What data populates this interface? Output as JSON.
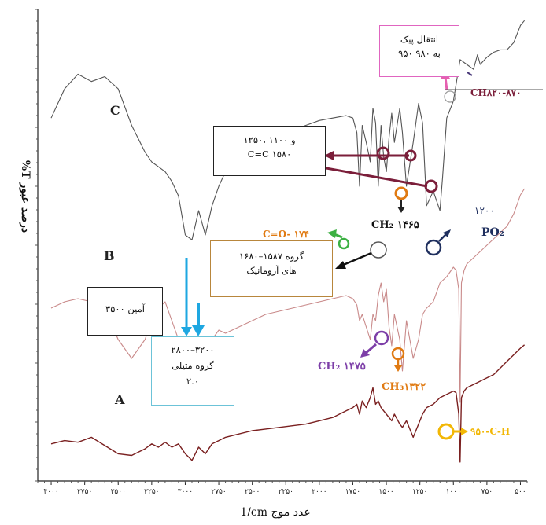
{
  "chart_data": {
    "type": "line",
    "title": "",
    "xlabel": "1/cm عدد موج",
    "ylabel": "%T درصد عبور",
    "x_tick_labels": [
      "۴۰۰۰",
      "۳۷۵۰",
      "۳۵۰۰",
      "۳۲۵۰",
      "۳۰۰۰",
      "۲۷۵۰",
      "۲۵۰۰",
      "۲۲۵۰",
      "۲۰۰۰",
      "۱۷۵۰",
      "۱۵۰۰",
      "۱۲۵۰",
      "۱۰۰۰",
      "۷۵۰",
      "۵۰۰"
    ],
    "xlim": [
      4100,
      450
    ],
    "x_direction": "descending",
    "grid": false,
    "series": [
      {
        "name": "C",
        "color": "#555555",
        "x": [
          4000,
          3900,
          3800,
          3700,
          3600,
          3500,
          3400,
          3300,
          3250,
          3200,
          3150,
          3100,
          3050,
          3000,
          2950,
          2900,
          2850,
          2800,
          2750,
          2700,
          2600,
          2500,
          2400,
          2300,
          2200,
          2100,
          2000,
          1900,
          1800,
          1750,
          1720,
          1700,
          1680,
          1650,
          1620,
          1600,
          1580,
          1560,
          1540,
          1520,
          1500,
          1480,
          1460,
          1440,
          1400,
          1380,
          1350,
          1300,
          1260,
          1230,
          1200,
          1150,
          1100,
          1080,
          1050,
          1000,
          950,
          900,
          850,
          820,
          800,
          750,
          700,
          650,
          600,
          550,
          500,
          470
        ],
        "y": [
          58,
          70,
          76,
          73,
          75,
          70,
          55,
          44,
          40,
          38,
          36,
          32,
          26,
          10,
          8,
          20,
          10,
          22,
          30,
          36,
          42,
          46,
          49,
          51,
          53,
          55,
          57,
          58,
          59,
          58,
          52,
          30,
          55,
          48,
          40,
          62,
          56,
          30,
          55,
          42,
          36,
          50,
          60,
          48,
          62,
          52,
          30,
          48,
          64,
          56,
          22,
          28,
          20,
          34,
          58,
          65,
          82,
          80,
          78,
          84,
          80,
          83,
          85,
          86,
          86,
          89,
          96,
          98
        ]
      },
      {
        "name": "B",
        "color": "#c98a8a",
        "x": [
          4000,
          3900,
          3800,
          3700,
          3600,
          3500,
          3400,
          3300,
          3250,
          3200,
          3150,
          3100,
          3050,
          3000,
          2950,
          2900,
          2850,
          2800,
          2750,
          2700,
          2600,
          2500,
          2400,
          2300,
          2200,
          2100,
          2000,
          1900,
          1800,
          1750,
          1720,
          1700,
          1680,
          1650,
          1620,
          1600,
          1580,
          1560,
          1540,
          1520,
          1500,
          1480,
          1460,
          1440,
          1400,
          1380,
          1350,
          1300,
          1260,
          1230,
          1200,
          1150,
          1100,
          1050,
          1000,
          980,
          960,
          950,
          940,
          920,
          900,
          850,
          800,
          750,
          700,
          650,
          600,
          550,
          500,
          470
        ],
        "y": [
          32,
          34,
          35,
          34,
          32,
          22,
          16,
          22,
          28,
          32,
          34,
          28,
          22,
          8,
          4,
          20,
          6,
          22,
          25,
          24,
          26,
          28,
          30,
          31,
          32,
          33,
          34,
          35,
          36,
          35,
          33,
          28,
          30,
          26,
          22,
          30,
          28,
          36,
          40,
          34,
          38,
          26,
          20,
          30,
          22,
          12,
          28,
          16,
          22,
          30,
          32,
          34,
          40,
          42,
          45,
          44,
          38,
          2,
          40,
          44,
          46,
          48,
          50,
          52,
          54,
          56,
          58,
          62,
          68,
          70
        ]
      },
      {
        "name": "A",
        "color": "#7a2020",
        "x": [
          4000,
          3900,
          3800,
          3700,
          3600,
          3500,
          3400,
          3300,
          3250,
          3200,
          3150,
          3100,
          3050,
          3000,
          2950,
          2900,
          2850,
          2800,
          2750,
          2700,
          2600,
          2500,
          2400,
          2300,
          2200,
          2100,
          2000,
          1900,
          1800,
          1750,
          1720,
          1700,
          1680,
          1650,
          1620,
          1600,
          1580,
          1560,
          1540,
          1520,
          1500,
          1480,
          1460,
          1440,
          1400,
          1380,
          1350,
          1300,
          1260,
          1230,
          1200,
          1150,
          1100,
          1050,
          1000,
          980,
          960,
          950,
          940,
          920,
          900,
          850,
          800,
          750,
          700,
          650,
          600,
          550,
          500,
          470
        ],
        "y": [
          12,
          14,
          13,
          16,
          11,
          6,
          5,
          9,
          12,
          10,
          13,
          10,
          12,
          6,
          2,
          10,
          6,
          12,
          14,
          16,
          18,
          20,
          21,
          22,
          23,
          24,
          26,
          28,
          32,
          34,
          36,
          30,
          38,
          34,
          40,
          46,
          36,
          38,
          34,
          32,
          30,
          28,
          26,
          30,
          24,
          22,
          26,
          16,
          24,
          30,
          34,
          36,
          40,
          42,
          44,
          43,
          30,
          1,
          40,
          44,
          46,
          48,
          50,
          52,
          54,
          58,
          62,
          66,
          70,
          72
        ]
      }
    ],
    "curve_labels": [
      "C",
      "B",
      "A"
    ],
    "annotations": {
      "peak_shift": {
        "line1": "انتقال پیک",
        "line2": "۹۵۰ به ۹۸۰"
      },
      "ch_bend": "CH۸۲۰-۸۷۰",
      "cc_box": {
        "line1": "۱۲۵۰، ۱۱۰۰ و",
        "line2": "C=C ۱۵۸۰"
      },
      "ch2_1465": "CH₂ ۱۴۶۵",
      "po2": {
        "value": "۱۲۰۰",
        "formula": "PO₂"
      },
      "co": "C=O- ۱۷۴",
      "aromatic_box": {
        "line1": "۱۶۸۰–۱۵۸۷ گروه",
        "line2": "های آرومانیک"
      },
      "amine_box": "۳۵۰۰ آمین",
      "methyl_box": {
        "line1": "۲۸۰۰–۳۲۰۰",
        "line2": "گروه متیلی",
        "line3": "۲.۰"
      },
      "ch2_1475": "CH₂ ۱۴۷۵",
      "ch3_1322": "CH₃۱۳۲۲",
      "ch_950": "۹۵۰-C-H"
    },
    "colors": {
      "arrow_dark": "#7b1e3a",
      "arrow_blue": "#1ea7e1",
      "green": "#3cb043",
      "navy": "#1f2f5e",
      "purple": "#7d3fa8",
      "orange": "#e07a12",
      "yellow": "#f2b705",
      "pink": "#e65fb0",
      "brown_box": "#b8863c",
      "ice_box": "#6cc3d8"
    }
  }
}
